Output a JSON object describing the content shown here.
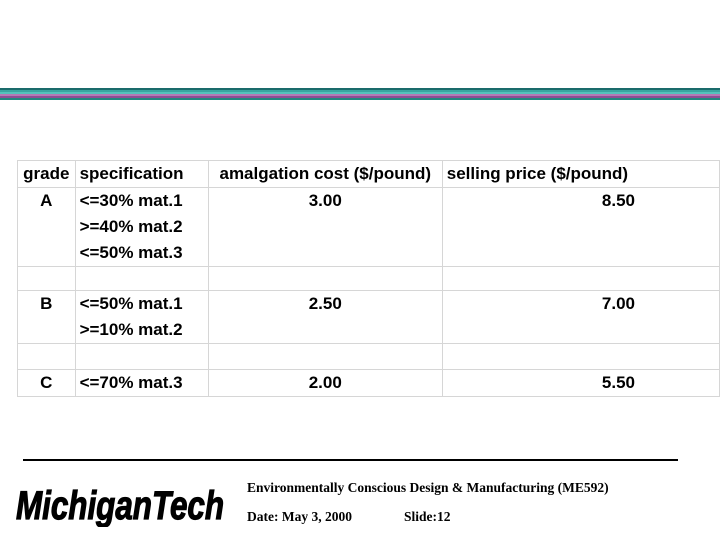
{
  "table": {
    "headers": [
      "grade",
      "specification",
      "amalgation cost ($/pound)",
      "selling price ($/pound)"
    ],
    "rows": [
      {
        "grade": "A",
        "spec": [
          "<=30% mat.1",
          ">=40% mat.2",
          "<=50% mat.3"
        ],
        "cost": "3.00",
        "price": "8.50"
      },
      {
        "grade": "B",
        "spec": [
          "<=50% mat.1",
          ">=10% mat.2"
        ],
        "cost": "2.50",
        "price": "7.00"
      },
      {
        "grade": "C",
        "spec": [
          "<=70% mat.3"
        ],
        "cost": "2.00",
        "price": "5.50"
      }
    ]
  },
  "footer": {
    "course": "Environmentally Conscious Design & Manufacturing (ME592)",
    "date": "Date: May 3, 2000",
    "slide": "Slide:12",
    "logo_text": "MichiganTech"
  },
  "colors": {
    "teal_dark": "#1a6b6b",
    "teal": "#3aa6a0",
    "purple": "#8e4e94",
    "logo_fill": "#000000"
  }
}
